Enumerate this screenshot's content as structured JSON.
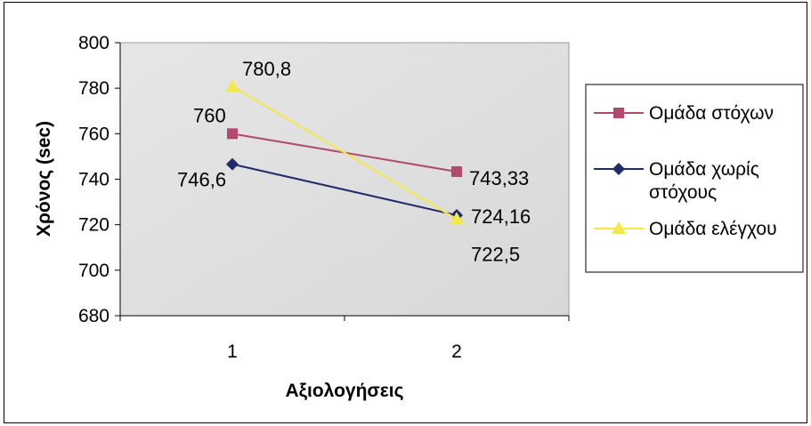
{
  "chart_data": {
    "type": "line",
    "title": "",
    "xlabel": "Αξιολογήσεις",
    "ylabel": "Χρόνος (sec)",
    "categories": [
      "1",
      "2"
    ],
    "ylim": [
      680,
      800
    ],
    "yticks": [
      680,
      700,
      720,
      740,
      760,
      780,
      800
    ],
    "grid": false,
    "legend": "right",
    "series": [
      {
        "name": "Ομάδα στόχων",
        "values": [
          760,
          743.33
        ],
        "labels": [
          "760",
          "743,33"
        ],
        "color": "#b04a6e",
        "marker": "square"
      },
      {
        "name": "Ομάδα χωρίς στόχους",
        "values": [
          746.6,
          724.16
        ],
        "labels": [
          "746,6",
          "724,16"
        ],
        "color": "#1f2a6b",
        "marker": "diamond"
      },
      {
        "name": "Ομάδα ελέγχου",
        "values": [
          780.8,
          722.5
        ],
        "labels": [
          "780,8",
          "722,5"
        ],
        "color": "#f3e84a",
        "marker": "triangle"
      }
    ]
  }
}
